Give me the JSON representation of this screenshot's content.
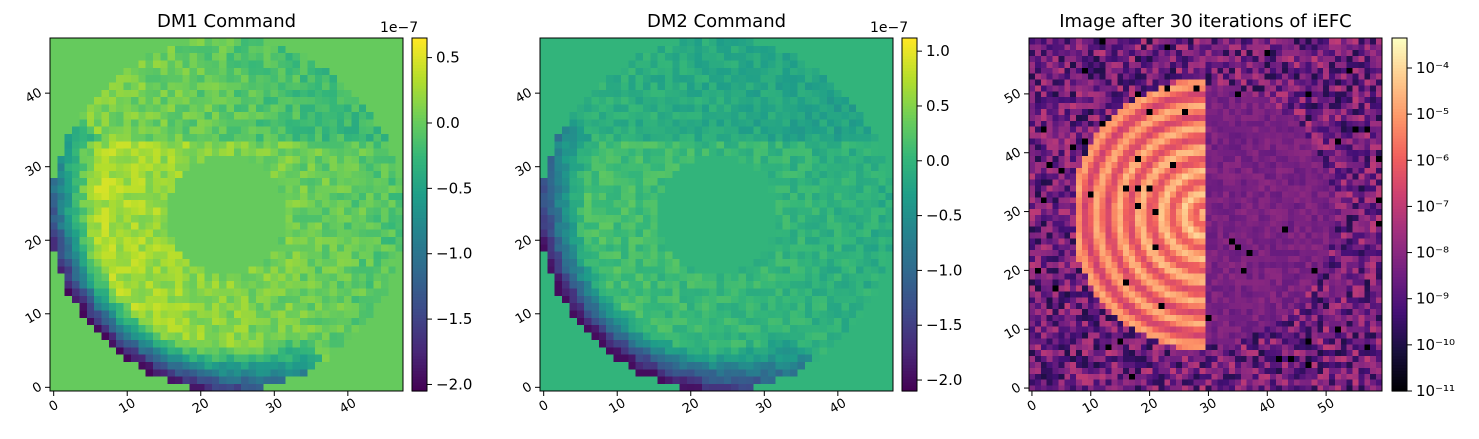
{
  "chart_data": [
    {
      "type": "heatmap",
      "title": "DM1 Command",
      "grid_size": 48,
      "x_ticks": [
        "0",
        "10",
        "20",
        "30",
        "40"
      ],
      "y_ticks": [
        "0",
        "10",
        "20",
        "30",
        "40"
      ],
      "colormap": "viridis",
      "colorbar": {
        "scale": "linear",
        "exponent_label": "1e−7",
        "range": [
          -2.05,
          0.65
        ],
        "ticks": [
          {
            "value": 0.5,
            "label": "0.5"
          },
          {
            "value": 0.0,
            "label": "0.0"
          },
          {
            "value": -0.5,
            "label": "−0.5"
          },
          {
            "value": -1.0,
            "label": "−1.0"
          },
          {
            "value": -1.5,
            "label": "−1.5"
          },
          {
            "value": -2.0,
            "label": "−2.0"
          }
        ]
      },
      "background_value": 0.0,
      "annulus": {
        "center": [
          24,
          24
        ],
        "inner_radius": 8,
        "outer_radius": 24
      },
      "value_range_in_annulus": [
        -2.0,
        0.6
      ]
    },
    {
      "type": "heatmap",
      "title": "DM2 Command",
      "grid_size": 48,
      "x_ticks": [
        "0",
        "10",
        "20",
        "30",
        "40"
      ],
      "y_ticks": [
        "0",
        "10",
        "20",
        "30",
        "40"
      ],
      "colormap": "viridis",
      "colorbar": {
        "scale": "linear",
        "exponent_label": "1e−7",
        "range": [
          -2.1,
          1.12
        ],
        "ticks": [
          {
            "value": 1.0,
            "label": "1.0"
          },
          {
            "value": 0.5,
            "label": "0.5"
          },
          {
            "value": 0.0,
            "label": "0.0"
          },
          {
            "value": -0.5,
            "label": "−0.5"
          },
          {
            "value": -1.0,
            "label": "−1.0"
          },
          {
            "value": -1.5,
            "label": "−1.5"
          },
          {
            "value": -2.0,
            "label": "−2.0"
          }
        ]
      },
      "background_value": 0.0,
      "annulus": {
        "center": [
          24,
          24
        ],
        "inner_radius": 8,
        "outer_radius": 24
      },
      "value_range_in_annulus": [
        -2.0,
        0.9
      ]
    },
    {
      "type": "heatmap",
      "title": "Image after 30 iterations of iEFC",
      "grid_size": 60,
      "x_ticks": [
        "0",
        "10",
        "20",
        "30",
        "40",
        "50"
      ],
      "y_ticks": [
        "0",
        "10",
        "20",
        "30",
        "40",
        "50"
      ],
      "colormap": "magma",
      "colorbar": {
        "scale": "log",
        "range_log10": [
          -11,
          -3.35
        ],
        "ticks": [
          {
            "value": -4,
            "label": "10⁻⁴"
          },
          {
            "value": -5,
            "label": "10⁻⁵"
          },
          {
            "value": -6,
            "label": "10⁻⁶"
          },
          {
            "value": -7,
            "label": "10⁻⁷"
          },
          {
            "value": -8,
            "label": "10⁻⁸"
          },
          {
            "value": -9,
            "label": "10⁻⁹"
          },
          {
            "value": -10,
            "label": "10⁻¹⁰"
          },
          {
            "value": -11,
            "label": "10⁻¹¹"
          }
        ]
      },
      "dark_hole_x_range": [
        8,
        30
      ],
      "dark_hole_rings_center": [
        30,
        30
      ],
      "background_log10_range": [
        -10,
        -7
      ]
    }
  ]
}
